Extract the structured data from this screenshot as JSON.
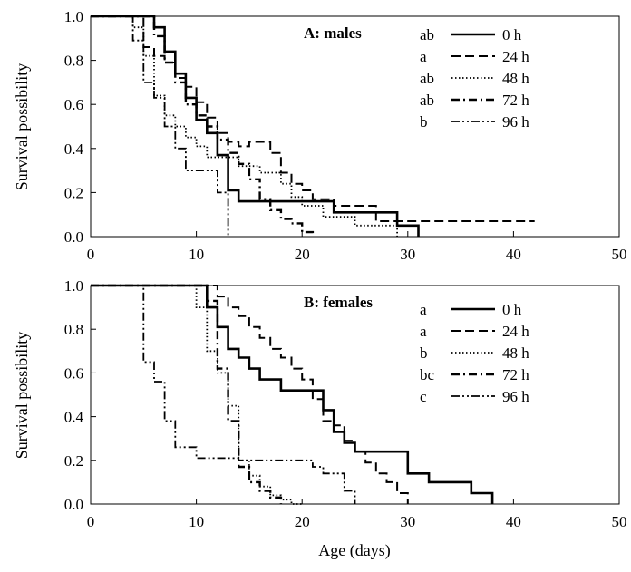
{
  "chart_data": [
    {
      "type": "line",
      "step": true,
      "panel_title": "A: males",
      "ylabel": "Survival possibility",
      "xlabel": "",
      "xlim": [
        0,
        50
      ],
      "ylim": [
        0,
        1.0
      ],
      "x_ticks": [
        "0",
        "10",
        "20",
        "30",
        "40",
        "50"
      ],
      "y_ticks": [
        "0.0",
        "0.2",
        "0.4",
        "0.6",
        "0.8",
        "1.0"
      ],
      "legend_position": "top-right",
      "series": [
        {
          "name": "0 h",
          "letter": "ab",
          "dash": "solid",
          "x": [
            0,
            5,
            6,
            7,
            8,
            9,
            10,
            11,
            12,
            13,
            14,
            23,
            29,
            31
          ],
          "y": [
            1.0,
            1.0,
            0.95,
            0.84,
            0.74,
            0.63,
            0.53,
            0.47,
            0.37,
            0.21,
            0.16,
            0.11,
            0.05,
            0.0
          ]
        },
        {
          "name": "24 h",
          "letter": "a",
          "dash": "dash",
          "x": [
            0,
            4,
            5,
            6,
            7,
            8,
            9,
            10,
            11,
            12,
            13,
            14,
            15,
            17,
            18,
            19,
            20,
            21,
            23,
            25,
            27,
            42
          ],
          "y": [
            1.0,
            1.0,
            0.86,
            0.82,
            0.79,
            0.72,
            0.68,
            0.61,
            0.54,
            0.47,
            0.43,
            0.41,
            0.43,
            0.38,
            0.29,
            0.24,
            0.21,
            0.17,
            0.14,
            0.14,
            0.07,
            0.07
          ]
        },
        {
          "name": "48 h",
          "letter": "ab",
          "dash": "dot",
          "x": [
            0,
            3,
            4,
            5,
            6,
            7,
            8,
            9,
            10,
            11,
            12,
            13,
            14,
            15,
            16,
            17,
            18,
            19,
            20,
            21,
            22,
            25,
            29
          ],
          "y": [
            1.0,
            1.0,
            0.95,
            0.82,
            0.64,
            0.55,
            0.5,
            0.45,
            0.41,
            0.36,
            0.36,
            0.36,
            0.32,
            0.32,
            0.29,
            0.29,
            0.24,
            0.18,
            0.14,
            0.14,
            0.09,
            0.05,
            0.0
          ]
        },
        {
          "name": "72 h",
          "letter": "ab",
          "dash": "dashdot",
          "x": [
            0,
            5,
            6,
            7,
            8,
            9,
            10,
            11,
            12,
            13,
            14,
            15,
            16,
            17,
            18,
            19,
            20,
            21
          ],
          "y": [
            1.0,
            1.0,
            0.91,
            0.79,
            0.7,
            0.6,
            0.55,
            0.5,
            0.44,
            0.38,
            0.33,
            0.26,
            0.17,
            0.12,
            0.08,
            0.06,
            0.02,
            0.0
          ]
        },
        {
          "name": "96 h",
          "letter": "b",
          "dash": "dashdotdot",
          "x": [
            0,
            3,
            4,
            5,
            6,
            7,
            8,
            9,
            10,
            11,
            12,
            13
          ],
          "y": [
            1.0,
            1.0,
            0.89,
            0.7,
            0.63,
            0.5,
            0.4,
            0.3,
            0.3,
            0.3,
            0.2,
            0.0
          ]
        }
      ]
    },
    {
      "type": "line",
      "step": true,
      "panel_title": "B: females",
      "ylabel": "Survival possibility",
      "xlabel": "Age (days)",
      "xlim": [
        0,
        50
      ],
      "ylim": [
        0,
        1.0
      ],
      "x_ticks": [
        "0",
        "10",
        "20",
        "30",
        "40",
        "50"
      ],
      "y_ticks": [
        "0.0",
        "0.2",
        "0.4",
        "0.6",
        "0.8",
        "1.0"
      ],
      "legend_position": "top-right",
      "series": [
        {
          "name": "0 h",
          "letter": "a",
          "dash": "solid",
          "x": [
            0,
            10,
            11,
            12,
            13,
            14,
            15,
            16,
            17,
            18,
            19,
            20,
            21,
            22,
            23,
            24,
            25,
            30,
            32,
            36,
            38
          ],
          "y": [
            1.0,
            1.0,
            0.9,
            0.81,
            0.71,
            0.67,
            0.62,
            0.57,
            0.57,
            0.52,
            0.52,
            0.52,
            0.52,
            0.43,
            0.33,
            0.28,
            0.24,
            0.14,
            0.1,
            0.05,
            0.0
          ]
        },
        {
          "name": "24 h",
          "letter": "a",
          "dash": "dash",
          "x": [
            0,
            11,
            12,
            13,
            14,
            15,
            16,
            17,
            18,
            19,
            20,
            21,
            22,
            23,
            24,
            25,
            26,
            27,
            28,
            29,
            30
          ],
          "y": [
            1.0,
            1.0,
            0.95,
            0.9,
            0.86,
            0.81,
            0.76,
            0.71,
            0.67,
            0.62,
            0.57,
            0.48,
            0.38,
            0.36,
            0.29,
            0.24,
            0.19,
            0.14,
            0.1,
            0.05,
            0.0
          ]
        },
        {
          "name": "48 h",
          "letter": "b",
          "dash": "dot",
          "x": [
            0,
            9,
            10,
            11,
            12,
            13,
            14,
            15,
            16,
            17,
            18,
            19,
            20
          ],
          "y": [
            1.0,
            1.0,
            0.9,
            0.7,
            0.6,
            0.45,
            0.2,
            0.13,
            0.08,
            0.04,
            0.02,
            0.0,
            0.0
          ]
        },
        {
          "name": "72 h",
          "letter": "bc",
          "dash": "dashdot",
          "x": [
            0,
            10,
            11,
            12,
            13,
            14,
            15,
            16,
            17,
            18
          ],
          "y": [
            1.0,
            1.0,
            0.93,
            0.62,
            0.38,
            0.17,
            0.1,
            0.06,
            0.03,
            0.0
          ]
        },
        {
          "name": "96 h",
          "letter": "c",
          "dash": "dashdotdot",
          "x": [
            0,
            4,
            5,
            6,
            7,
            8,
            10,
            14,
            15,
            17,
            19,
            21,
            22,
            24,
            25
          ],
          "y": [
            1.0,
            1.0,
            0.65,
            0.56,
            0.38,
            0.26,
            0.21,
            0.2,
            0.2,
            0.2,
            0.2,
            0.17,
            0.14,
            0.06,
            0.0
          ]
        }
      ]
    }
  ]
}
